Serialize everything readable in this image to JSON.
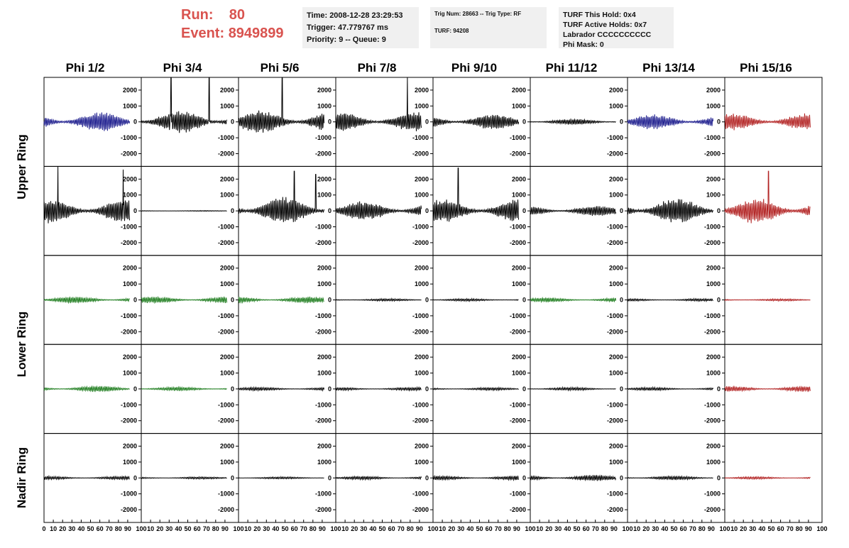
{
  "header": {
    "run_label": "Run:",
    "run_value": "80",
    "event_label": "Event:",
    "event_value": "8949899",
    "time": "Time: 2008-12-28 23:29:53",
    "trigger": "Trigger: 47.779767 ms",
    "priority": "Priority: 9 -- Queue: 9",
    "trig_num": "Trig Num: 28663 -- Trig Type: RF",
    "turf": "TURF: 94208",
    "turf_this_hold": "TURF This Hold: 0x4",
    "turf_active_holds": "TURF Active Holds: 0x7",
    "labrador": "Labrador CCCCCCCCCC",
    "phi_mask": "Phi Mask: 0"
  },
  "columns": [
    "Phi 1/2",
    "Phi 3/4",
    "Phi 5/6",
    "Phi 7/8",
    "Phi 9/10",
    "Phi 11/12",
    "Phi 13/14",
    "Phi 15/16"
  ],
  "ring_labels": [
    "Upper Ring",
    "Lower Ring",
    "Nadir Ring"
  ],
  "colors": {
    "blue": "#1a1a8c",
    "black": "#000000",
    "green": "#1e7d1e",
    "red": "#b22222",
    "title_red": "#d9534f"
  },
  "chart_data": {
    "type": "line",
    "ylim": [
      -2800,
      2800
    ],
    "xlim": [
      0,
      100
    ],
    "y_ticks": [
      -2000,
      -1000,
      0,
      1000,
      2000
    ],
    "x_ticks": [
      0,
      10,
      20,
      30,
      40,
      50,
      60,
      70,
      80,
      90,
      100
    ],
    "grid": false,
    "panels": [
      [
        {
          "color": "blue",
          "amp": 650,
          "spikes": []
        },
        {
          "color": "black",
          "amp": 750,
          "spikes": [
            [
              32,
              3000
            ],
            [
              73,
              3000
            ]
          ]
        },
        {
          "color": "black",
          "amp": 750,
          "spikes": [
            [
              47,
              2900
            ]
          ]
        },
        {
          "color": "black",
          "amp": 650,
          "spikes": [
            [
              77,
              2900
            ]
          ]
        },
        {
          "color": "black",
          "amp": 500,
          "spikes": []
        },
        {
          "color": "black",
          "amp": 200,
          "spikes": []
        },
        {
          "color": "blue",
          "amp": 500,
          "spikes": []
        },
        {
          "color": "red",
          "amp": 550,
          "spikes": []
        }
      ],
      [
        {
          "color": "black",
          "amp": 800,
          "spikes": [
            [
              15,
              2900
            ],
            [
              85,
              2600
            ]
          ]
        },
        {
          "color": "black",
          "amp": 30,
          "spikes": []
        },
        {
          "color": "black",
          "amp": 900,
          "spikes": [
            [
              60,
              2500
            ],
            [
              83,
              2300
            ]
          ]
        },
        {
          "color": "black",
          "amp": 650,
          "spikes": []
        },
        {
          "color": "black",
          "amp": 750,
          "spikes": [
            [
              27,
              2700
            ]
          ]
        },
        {
          "color": "black",
          "amp": 350,
          "spikes": []
        },
        {
          "color": "black",
          "amp": 850,
          "spikes": []
        },
        {
          "color": "red",
          "amp": 850,
          "spikes": [
            [
              47,
              2500
            ]
          ]
        }
      ],
      [
        {
          "color": "green",
          "amp": 220,
          "spikes": []
        },
        {
          "color": "green",
          "amp": 220,
          "spikes": []
        },
        {
          "color": "green",
          "amp": 220,
          "spikes": []
        },
        {
          "color": "black",
          "amp": 90,
          "spikes": []
        },
        {
          "color": "black",
          "amp": 90,
          "spikes": []
        },
        {
          "color": "green",
          "amp": 150,
          "spikes": []
        },
        {
          "color": "black",
          "amp": 90,
          "spikes": []
        },
        {
          "color": "red",
          "amp": 80,
          "spikes": []
        }
      ],
      [
        {
          "color": "green",
          "amp": 200,
          "spikes": []
        },
        {
          "color": "green",
          "amp": 130,
          "spikes": []
        },
        {
          "color": "black",
          "amp": 120,
          "spikes": []
        },
        {
          "color": "black",
          "amp": 110,
          "spikes": []
        },
        {
          "color": "black",
          "amp": 100,
          "spikes": []
        },
        {
          "color": "black",
          "amp": 110,
          "spikes": []
        },
        {
          "color": "black",
          "amp": 110,
          "spikes": []
        },
        {
          "color": "red",
          "amp": 180,
          "spikes": []
        }
      ],
      [
        {
          "color": "black",
          "amp": 120,
          "spikes": []
        },
        {
          "color": "black",
          "amp": 80,
          "spikes": []
        },
        {
          "color": "black",
          "amp": 80,
          "spikes": []
        },
        {
          "color": "black",
          "amp": 120,
          "spikes": []
        },
        {
          "color": "black",
          "amp": 140,
          "spikes": []
        },
        {
          "color": "black",
          "amp": 200,
          "spikes": []
        },
        {
          "color": "black",
          "amp": 140,
          "spikes": []
        },
        {
          "color": "red",
          "amp": 90,
          "spikes": []
        }
      ]
    ]
  }
}
